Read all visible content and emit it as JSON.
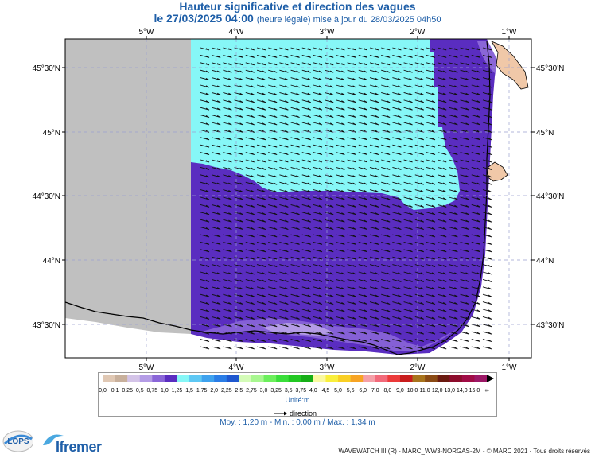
{
  "header": {
    "title": "Hauteur significative et direction des vagues",
    "date": "le 27/03/2025 04:00",
    "update_note": "(heure légale) mise à jour du 28/03/2025 04h50"
  },
  "axes": {
    "lon_labels": [
      "5°W",
      "4°W",
      "3°W",
      "2°W",
      "1°W"
    ],
    "lat_labels": [
      "45°30'N",
      "45°N",
      "44°30'N",
      "44°N",
      "43°30'N"
    ]
  },
  "legend": {
    "values": [
      "0,0",
      "0,1",
      "0,25",
      "0,5",
      "0,75",
      "1,0",
      "1,25",
      "1,5",
      "1,75",
      "2,0",
      "2,25",
      "2,5",
      "2,75",
      "3,0",
      "3,25",
      "3,5",
      "3,75",
      "4,0",
      "4,5",
      "5,0",
      "5,5",
      "6,0",
      "7,0",
      "8,0",
      "9,0",
      "10,0",
      "11,0",
      "12,0",
      "13,0",
      "14,0",
      "15,0",
      "∞"
    ],
    "colors": [
      "#e0c8b4",
      "#c8b09c",
      "#d4c4e8",
      "#b49ce6",
      "#8a66d8",
      "#5a2dc0",
      "#86f7f7",
      "#5ec8f4",
      "#3ea2ee",
      "#2a7de6",
      "#1f58cf",
      "#d4fcb8",
      "#a8f790",
      "#6cef5c",
      "#3ade3a",
      "#22c822",
      "#16ae16",
      "#faf9a0",
      "#f9ef3c",
      "#f9cf24",
      "#f7a424",
      "#f5a0a8",
      "#f26a7a",
      "#ec3a3a",
      "#c81c1c",
      "#a8741c",
      "#8a4a14",
      "#6a1a10",
      "#8c0c2c",
      "#a00c46",
      "#9c1866"
    ],
    "unit": "Unité:m",
    "direction_label": "direction"
  },
  "stats": {
    "text": "Moy. : 1,20 m   -   Min. : 0,00 m / Max. : 1,34 m"
  },
  "footer": {
    "text": "WAVEWATCH III (R) - MARC_WW3-NORGAS-2M - © MARC 2021 - Tous droits réservés"
  },
  "logos": {
    "lops": "LOPS",
    "ifremer": "Ifremer"
  },
  "colors": {
    "no_data": "#c0c0c0",
    "wave_high": "#86f7f7",
    "wave_mid": "#5a2dc0",
    "wave_low": "#8a66d8",
    "land": "#f0c8a8",
    "title_blue": "#1f5fa8"
  }
}
